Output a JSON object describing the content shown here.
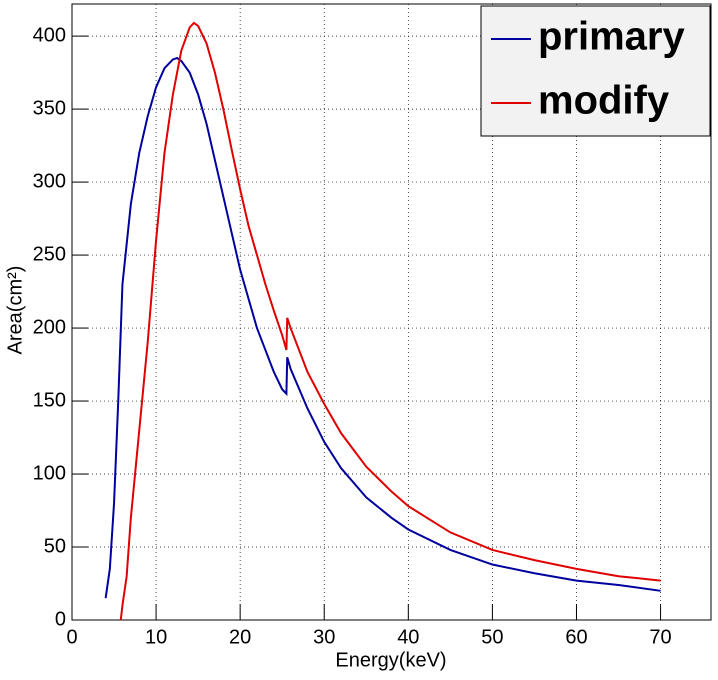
{
  "chart_data": {
    "type": "line",
    "xlabel": "Energy(keV)",
    "ylabel": "Area(cm²)",
    "xlim": [
      0,
      76
    ],
    "ylim": [
      0,
      422
    ],
    "xticks": [
      0,
      10,
      20,
      30,
      40,
      50,
      60,
      70
    ],
    "yticks": [
      0,
      50,
      100,
      150,
      200,
      250,
      300,
      350,
      400
    ],
    "grid": true,
    "legend": "upper right",
    "series": [
      {
        "name": "primary",
        "color": "#00009e",
        "x": [
          4,
          4.5,
          5,
          5.5,
          6,
          7,
          8,
          9,
          10,
          11,
          12,
          12.5,
          13,
          14,
          15,
          16,
          17,
          18,
          19,
          20,
          21,
          22,
          23,
          24,
          25,
          25.5,
          25.6,
          26,
          28,
          30,
          32,
          35,
          38,
          40,
          45,
          50,
          55,
          60,
          65,
          70
        ],
        "values": [
          15,
          35,
          80,
          150,
          230,
          285,
          320,
          345,
          365,
          378,
          384,
          385,
          383,
          375,
          360,
          340,
          315,
          290,
          265,
          240,
          220,
          200,
          185,
          170,
          158,
          155,
          180,
          172,
          145,
          122,
          104,
          84,
          70,
          62,
          48,
          38,
          32,
          27,
          24,
          20
        ]
      },
      {
        "name": "modify",
        "color": "#e00000",
        "x": [
          5.8,
          6,
          6.5,
          7,
          8,
          9,
          10,
          11,
          12,
          13,
          14,
          14.5,
          15,
          16,
          17,
          18,
          19,
          20,
          21,
          22,
          23,
          24,
          25,
          25.5,
          25.6,
          26,
          28,
          30,
          32,
          35,
          38,
          40,
          45,
          50,
          55,
          60,
          65,
          70
        ],
        "values": [
          0,
          10,
          30,
          70,
          130,
          190,
          260,
          320,
          360,
          390,
          406,
          409,
          407,
          395,
          375,
          350,
          322,
          295,
          270,
          250,
          230,
          212,
          195,
          185,
          207,
          200,
          170,
          148,
          128,
          105,
          88,
          78,
          60,
          48,
          41,
          35,
          30,
          27
        ]
      }
    ]
  }
}
